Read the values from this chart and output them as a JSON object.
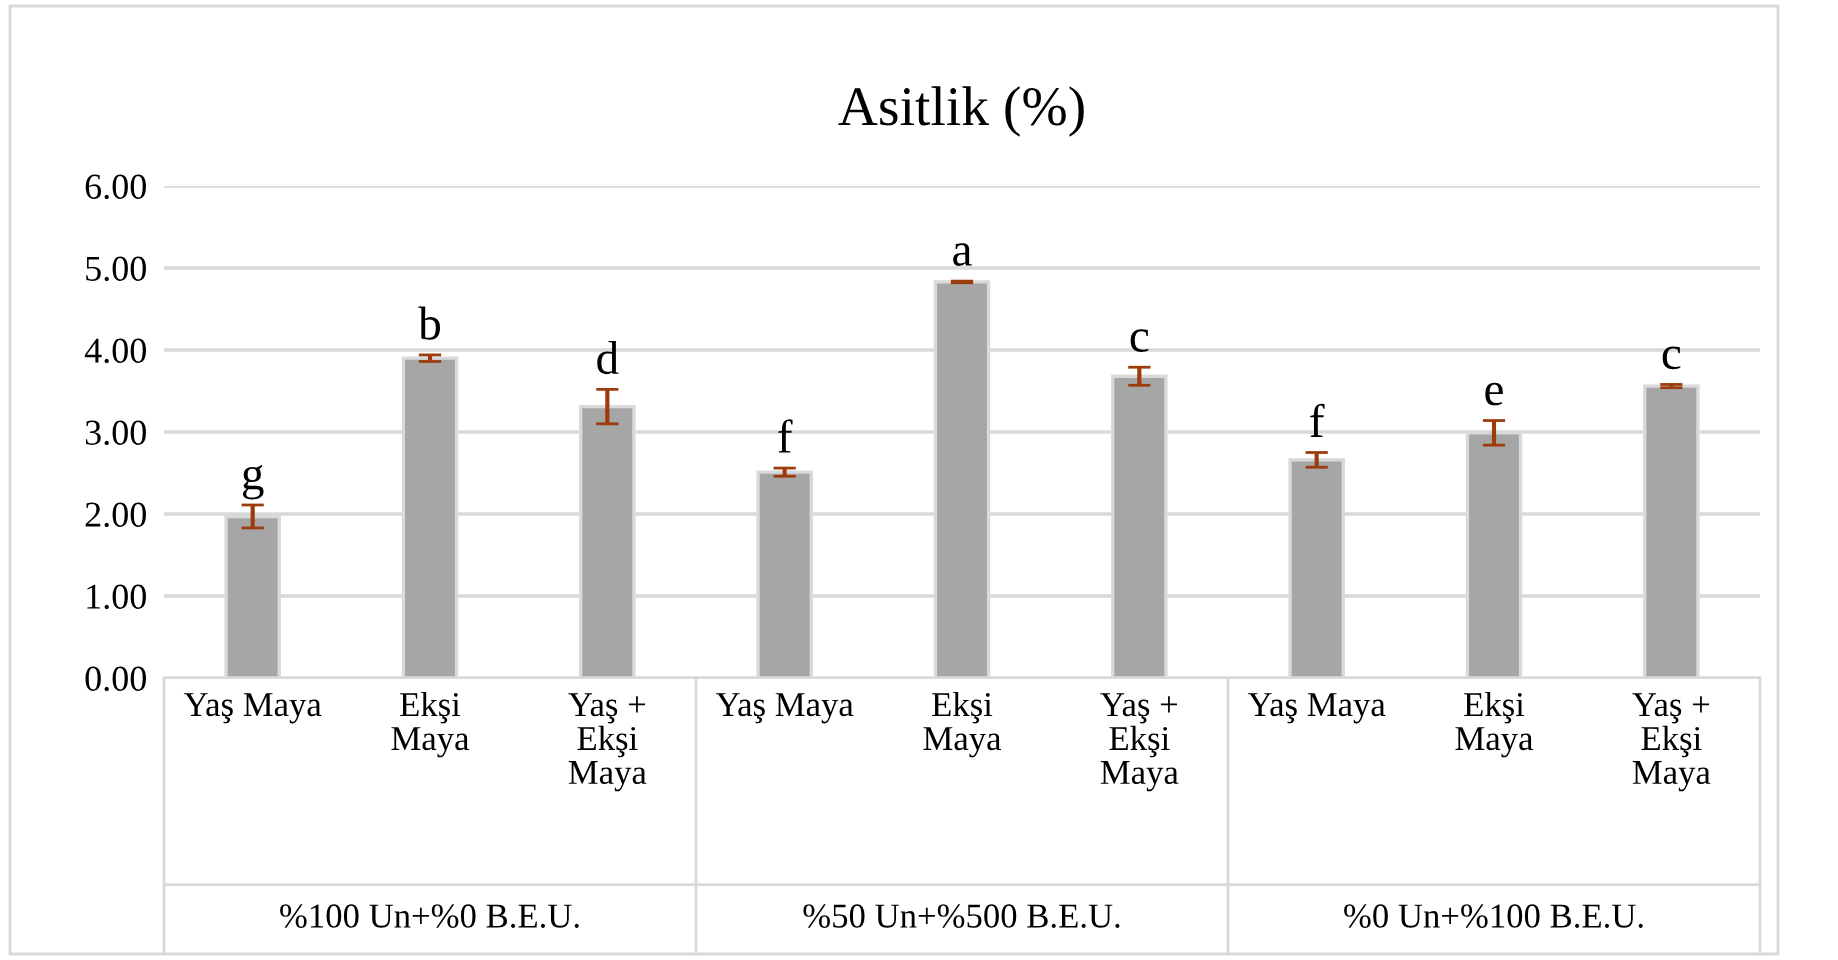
{
  "chart_data": {
    "type": "bar",
    "title": "Asitlik (%)",
    "categories": [
      "Yaş Maya",
      "Ekşi\nMaya",
      "Yaş +\nEkşi\nMaya",
      "Yaş Maya",
      "Ekşi\nMaya",
      "Yaş +\nEkşi\nMaya",
      "Yaş Maya",
      "Ekşi\nMaya",
      "Yaş +\nEkşi\nMaya"
    ],
    "values": [
      1.97,
      3.9,
      3.31,
      2.51,
      4.83,
      3.68,
      2.66,
      2.99,
      3.56
    ],
    "errors": [
      0.14,
      0.04,
      0.21,
      0.05,
      0.01,
      0.11,
      0.09,
      0.15,
      0.02
    ],
    "value_labels": [
      "g",
      "b",
      "d",
      "f",
      "a",
      "c",
      "f",
      "e",
      "c"
    ],
    "color": "#a6a6a6",
    "annotations": [
      "%100 Un+%0 B.E.U.",
      "%50 Un+%500 B.E.U.",
      "%0 Un+%100 B.E.U."
    ],
    "ylim": [
      0,
      6
    ],
    "yticks": [
      {
        "value": 0,
        "label": "0.00"
      },
      {
        "value": 1,
        "label": "1.00"
      },
      {
        "value": 2,
        "label": "2.00"
      },
      {
        "value": 3,
        "label": "3.00"
      },
      {
        "value": 4,
        "label": "4.00"
      },
      {
        "value": 5,
        "label": "5.00"
      },
      {
        "value": 6,
        "label": "6.00"
      }
    ],
    "grid": "y",
    "legend": false
  }
}
